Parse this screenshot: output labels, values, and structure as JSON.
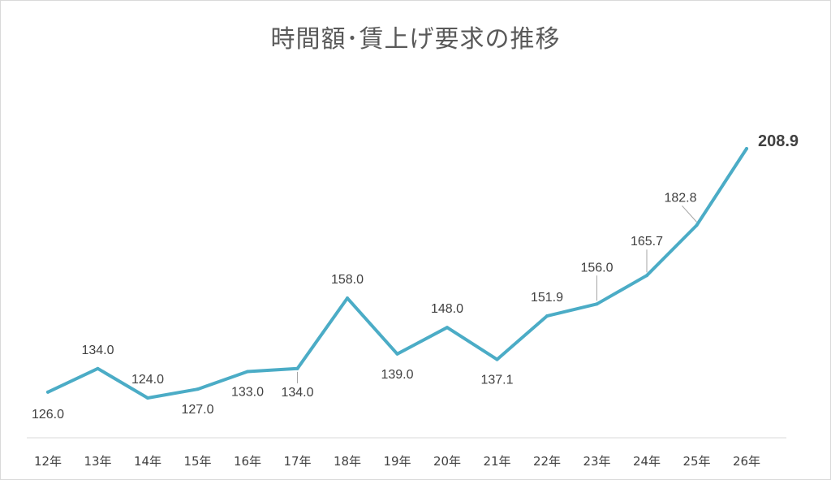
{
  "chart_data": {
    "type": "line",
    "title": "時間額･賃上げ要求の推移",
    "categories": [
      "12年",
      "13年",
      "14年",
      "15年",
      "16年",
      "17年",
      "18年",
      "19年",
      "20年",
      "21年",
      "22年",
      "23年",
      "24年",
      "25年",
      "26年"
    ],
    "series": [
      {
        "values": [
          126.0,
          134.0,
          124.0,
          127.0,
          133.0,
          134.0,
          158.0,
          139.0,
          148.0,
          137.1,
          151.9,
          156.0,
          165.7,
          182.8,
          208.9
        ],
        "labels": [
          "126.0",
          "134.0",
          "124.0",
          "127.0",
          "133.0",
          "134.0",
          "158.0",
          "139.0",
          "148.0",
          "137.1",
          "151.9",
          "156.0",
          "165.7",
          "182.8",
          "208.9"
        ],
        "label_positions": [
          "below",
          "above",
          "above",
          "below",
          "below",
          "below",
          "above",
          "below",
          "above",
          "below",
          "above",
          "above",
          "above",
          "above",
          "right"
        ],
        "color": "#4bacc6"
      }
    ],
    "xlabel": "",
    "ylabel": "",
    "legend": "none",
    "grid": false
  }
}
